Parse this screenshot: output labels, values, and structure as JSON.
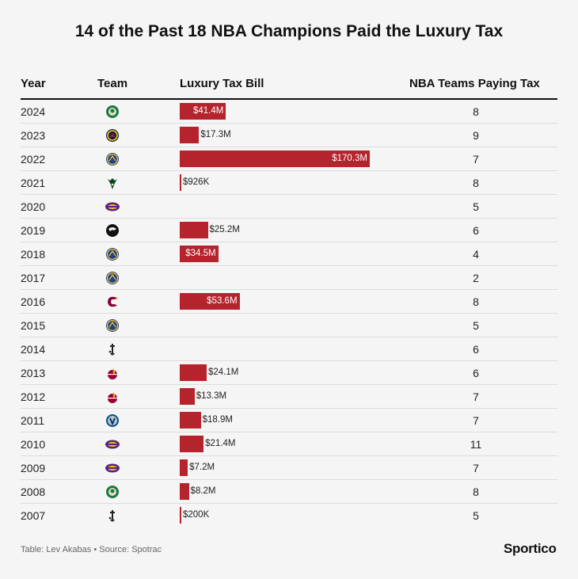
{
  "title": "14 of the Past 18 NBA Champions Paid the Luxury Tax",
  "columns": {
    "year": "Year",
    "team": "Team",
    "bill": "Luxury Tax Bill",
    "count": "NBA Teams Paying Tax"
  },
  "footer": {
    "note": "Table: Lev Akabas • Source: Spotrac",
    "brand": "Sportico"
  },
  "colors": {
    "bar": "#b5232d",
    "text": "#1a1a1a",
    "background": "#f5f5f5"
  },
  "chart_data": {
    "type": "table",
    "bar_max_millions": 170.3,
    "rows": [
      {
        "year": "2024",
        "team_logo": "celtics-logo",
        "bill_label": "$41.4M",
        "bill_millions": 41.4,
        "teams_paying_tax": "8"
      },
      {
        "year": "2023",
        "team_logo": "nuggets-logo",
        "bill_label": "$17.3M",
        "bill_millions": 17.3,
        "teams_paying_tax": "9"
      },
      {
        "year": "2022",
        "team_logo": "warriors-logo",
        "bill_label": "$170.3M",
        "bill_millions": 170.3,
        "teams_paying_tax": "7"
      },
      {
        "year": "2021",
        "team_logo": "bucks-logo",
        "bill_label": "$926K",
        "bill_millions": 0.926,
        "teams_paying_tax": "8"
      },
      {
        "year": "2020",
        "team_logo": "lakers-logo",
        "bill_label": "",
        "bill_millions": 0,
        "teams_paying_tax": "5"
      },
      {
        "year": "2019",
        "team_logo": "raptors-logo",
        "bill_label": "$25.2M",
        "bill_millions": 25.2,
        "teams_paying_tax": "6"
      },
      {
        "year": "2018",
        "team_logo": "warriors-logo",
        "bill_label": "$34.5M",
        "bill_millions": 34.5,
        "teams_paying_tax": "4"
      },
      {
        "year": "2017",
        "team_logo": "warriors-logo",
        "bill_label": "",
        "bill_millions": 0,
        "teams_paying_tax": "2"
      },
      {
        "year": "2016",
        "team_logo": "cavaliers-logo",
        "bill_label": "$53.6M",
        "bill_millions": 53.6,
        "teams_paying_tax": "8"
      },
      {
        "year": "2015",
        "team_logo": "warriors-logo",
        "bill_label": "",
        "bill_millions": 0,
        "teams_paying_tax": "5"
      },
      {
        "year": "2014",
        "team_logo": "spurs-logo",
        "bill_label": "",
        "bill_millions": 0,
        "teams_paying_tax": "6"
      },
      {
        "year": "2013",
        "team_logo": "heat-logo",
        "bill_label": "$24.1M",
        "bill_millions": 24.1,
        "teams_paying_tax": "6"
      },
      {
        "year": "2012",
        "team_logo": "heat-logo",
        "bill_label": "$13.3M",
        "bill_millions": 13.3,
        "teams_paying_tax": "7"
      },
      {
        "year": "2011",
        "team_logo": "mavericks-logo",
        "bill_label": "$18.9M",
        "bill_millions": 18.9,
        "teams_paying_tax": "7"
      },
      {
        "year": "2010",
        "team_logo": "lakers-logo",
        "bill_label": "$21.4M",
        "bill_millions": 21.4,
        "teams_paying_tax": "11"
      },
      {
        "year": "2009",
        "team_logo": "lakers-logo",
        "bill_label": "$7.2M",
        "bill_millions": 7.2,
        "teams_paying_tax": "7"
      },
      {
        "year": "2008",
        "team_logo": "celtics-logo",
        "bill_label": "$8.2M",
        "bill_millions": 8.2,
        "teams_paying_tax": "8"
      },
      {
        "year": "2007",
        "team_logo": "spurs-logo",
        "bill_label": "$200K",
        "bill_millions": 0.2,
        "teams_paying_tax": "5"
      }
    ]
  }
}
